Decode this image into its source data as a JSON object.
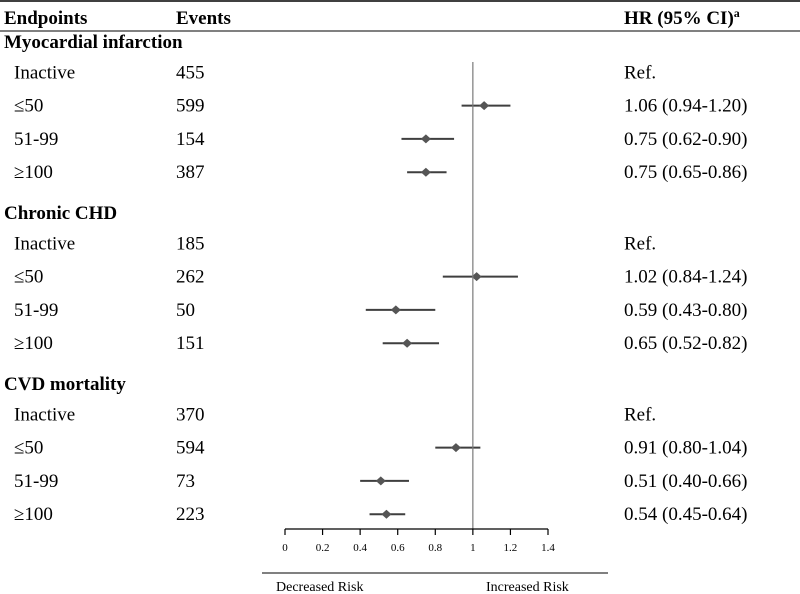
{
  "header": {
    "endpoints": "Endpoints",
    "events": "Events",
    "hr": "HR (95% CI)",
    "hr_sup": "a"
  },
  "axis": {
    "ticks": [
      "0",
      "0.2",
      "0.4",
      "0.6",
      "0.8",
      "1",
      "1.2",
      "1.4"
    ],
    "decreased": "Decreased Risk",
    "increased": "Increased Risk"
  },
  "chart_data": {
    "type": "forest",
    "xlim": [
      0,
      1.4
    ],
    "reference_line": 1,
    "groups": [
      {
        "name": "Myocardial infarction",
        "rows": [
          {
            "category": "Inactive",
            "events": "455",
            "label": "Ref."
          },
          {
            "category": "≤50",
            "events": "599",
            "hr": 1.06,
            "lo": 0.94,
            "hi": 1.2,
            "label": "1.06 (0.94-1.20)"
          },
          {
            "category": "51-99",
            "events": "154",
            "hr": 0.75,
            "lo": 0.62,
            "hi": 0.9,
            "label": "0.75 (0.62-0.90)"
          },
          {
            "category": "≥100",
            "events": "387",
            "hr": 0.75,
            "lo": 0.65,
            "hi": 0.86,
            "label": "0.75 (0.65-0.86)"
          }
        ]
      },
      {
        "name": "Chronic CHD",
        "rows": [
          {
            "category": "Inactive",
            "events": "185",
            "label": "Ref."
          },
          {
            "category": "≤50",
            "events": "262",
            "hr": 1.02,
            "lo": 0.84,
            "hi": 1.24,
            "label": "1.02 (0.84-1.24)"
          },
          {
            "category": "51-99",
            "events": "50",
            "hr": 0.59,
            "lo": 0.43,
            "hi": 0.8,
            "label": "0.59 (0.43-0.80)"
          },
          {
            "category": "≥100",
            "events": "151",
            "hr": 0.65,
            "lo": 0.52,
            "hi": 0.82,
            "label": "0.65 (0.52-0.82)"
          }
        ]
      },
      {
        "name": "CVD mortality",
        "rows": [
          {
            "category": "Inactive",
            "events": "370",
            "label": "Ref."
          },
          {
            "category": "≤50",
            "events": "594",
            "hr": 0.91,
            "lo": 0.8,
            "hi": 1.04,
            "label": "0.91 (0.80-1.04)"
          },
          {
            "category": "51-99",
            "events": "73",
            "hr": 0.51,
            "lo": 0.4,
            "hi": 0.66,
            "label": "0.51 (0.40-0.66)"
          },
          {
            "category": "≥100",
            "events": "223",
            "hr": 0.54,
            "lo": 0.45,
            "hi": 0.64,
            "label": "0.54 (0.45-0.64)"
          }
        ]
      }
    ]
  }
}
